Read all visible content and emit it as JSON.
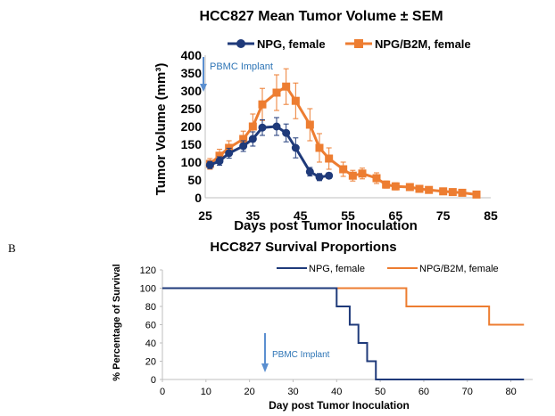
{
  "panel_label": "B",
  "chart_data": [
    {
      "type": "line",
      "title": "HCC827 Mean Tumor Volume ± SEM",
      "xlabel": "Days post Tumor Inoculation",
      "ylabel": "Tumor Volume (mm³)",
      "xlim": [
        25,
        85
      ],
      "ylim": [
        0,
        400
      ],
      "xticks": [
        25,
        35,
        45,
        55,
        65,
        75,
        85
      ],
      "yticks": [
        0,
        50,
        100,
        150,
        200,
        250,
        300,
        350,
        400
      ],
      "annotation": {
        "text": "PBMC Implant",
        "x": 25
      },
      "series": [
        {
          "name": "NPG, female",
          "color": "#1f3a7a",
          "marker": "circle",
          "x": [
            26,
            28,
            30,
            33,
            35,
            37,
            40,
            42,
            44,
            47,
            49,
            51
          ],
          "y": [
            92,
            103,
            125,
            145,
            165,
            197,
            200,
            182,
            140,
            73,
            58,
            62
          ],
          "err": [
            10,
            12,
            14,
            15,
            20,
            22,
            25,
            25,
            28,
            12,
            10,
            8
          ]
        },
        {
          "name": "NPG/B2M, female",
          "color": "#ed7d31",
          "marker": "square",
          "x": [
            26,
            28,
            30,
            33,
            35,
            37,
            40,
            42,
            44,
            47,
            49,
            51,
            54,
            56,
            58,
            61,
            63,
            65,
            68,
            70,
            72,
            75,
            77,
            79,
            82
          ],
          "y": [
            95,
            118,
            140,
            165,
            200,
            262,
            295,
            312,
            272,
            205,
            140,
            110,
            80,
            62,
            68,
            55,
            37,
            32,
            30,
            25,
            22,
            18,
            16,
            14,
            9
          ],
          "err": [
            15,
            18,
            20,
            22,
            35,
            45,
            50,
            50,
            50,
            45,
            40,
            30,
            20,
            15,
            15,
            15,
            10,
            10,
            8,
            6,
            6,
            5,
            5,
            4,
            4
          ]
        }
      ]
    },
    {
      "type": "line",
      "title": "HCC827 Survival Proportions",
      "xlabel": "Day post Tumor Inoculation",
      "ylabel": "% Percentage of Survival",
      "xlim": [
        0,
        85
      ],
      "ylim": [
        0,
        120
      ],
      "xticks": [
        0,
        10,
        20,
        30,
        40,
        50,
        60,
        70,
        80
      ],
      "yticks": [
        0,
        20,
        40,
        60,
        80,
        100,
        120
      ],
      "annotation": {
        "text": "PBMC Implant",
        "x": 24
      },
      "series": [
        {
          "name": "NPG, female",
          "color": "#1f3a7a",
          "step_x": [
            0,
            40,
            40,
            43,
            43,
            45,
            45,
            47,
            47,
            49,
            49,
            51,
            51,
            83
          ],
          "step_y": [
            100,
            100,
            80,
            80,
            60,
            60,
            40,
            40,
            20,
            20,
            0,
            0,
            0,
            0
          ]
        },
        {
          "name": "NPG/B2M, female",
          "color": "#ed7d31",
          "step_x": [
            0,
            56,
            56,
            75,
            75,
            83
          ],
          "step_y": [
            100,
            100,
            80,
            80,
            60,
            60
          ]
        }
      ]
    }
  ]
}
